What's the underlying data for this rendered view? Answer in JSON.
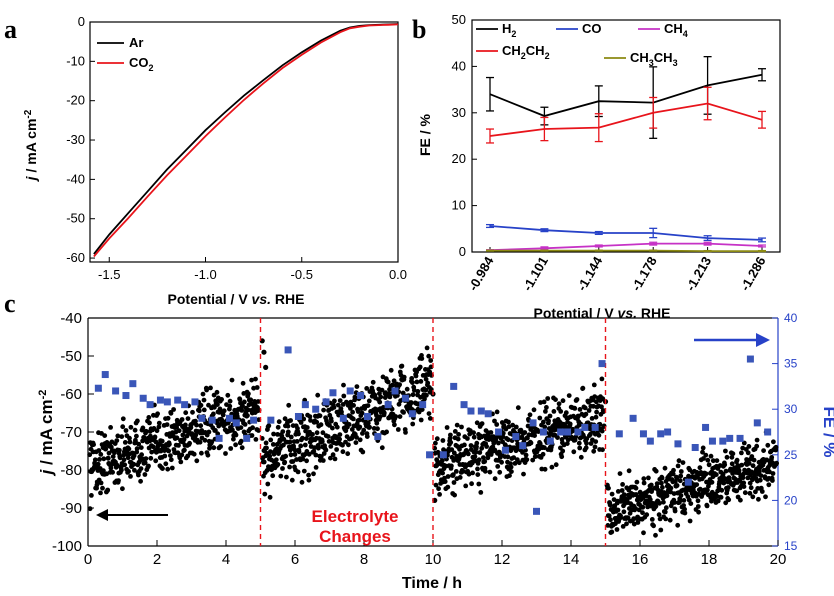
{
  "colors": {
    "black": "#000000",
    "red": "#e8141b",
    "blue": "#2742c8",
    "magenta": "#c632c6",
    "olive": "#8c8a12",
    "fe_points": "#3a56b8"
  },
  "chart_data": [
    {
      "panel": "a",
      "type": "line",
      "xlabel": {
        "pre": "Potential / V ",
        "italic": "vs.",
        "post": " RHE"
      },
      "ylabel": {
        "italic": "j",
        "pre": " / mA cm",
        "sup": "-2"
      },
      "xlim": [
        -1.6,
        0.0
      ],
      "ylim": [
        -61,
        0
      ],
      "xticks": [
        -1.5,
        -1.0,
        -0.5,
        0.0
      ],
      "xtick_labels": [
        "-1.5",
        "-1.0",
        "-0.5",
        "0.0"
      ],
      "yticks": [
        0,
        -10,
        -20,
        -30,
        -40,
        -50,
        -60
      ],
      "ytick_labels": [
        "0",
        "-10",
        "-20",
        "-30",
        "-40",
        "-50",
        "-60"
      ],
      "legend_position": "top-left",
      "series": [
        {
          "name": "Ar",
          "label_main": "Ar",
          "label_sub": "",
          "color": "#000000",
          "x": [
            -1.58,
            -1.5,
            -1.4,
            -1.3,
            -1.2,
            -1.1,
            -1.0,
            -0.9,
            -0.8,
            -0.7,
            -0.6,
            -0.5,
            -0.4,
            -0.3,
            -0.25,
            -0.2,
            -0.15,
            -0.1,
            -0.05,
            0.0
          ],
          "y": [
            -59.0,
            -54.0,
            -48.5,
            -43.0,
            -37.5,
            -32.5,
            -27.5,
            -23.0,
            -18.7,
            -14.8,
            -11.0,
            -7.7,
            -4.7,
            -2.2,
            -1.4,
            -1.0,
            -0.8,
            -0.7,
            -0.6,
            -0.5
          ]
        },
        {
          "name": "CO2",
          "label_main": "CO",
          "label_sub": "2",
          "color": "#e8141b",
          "x": [
            -1.58,
            -1.5,
            -1.4,
            -1.3,
            -1.2,
            -1.1,
            -1.0,
            -0.9,
            -0.8,
            -0.7,
            -0.6,
            -0.5,
            -0.4,
            -0.3,
            -0.25,
            -0.2,
            -0.15,
            -0.1,
            -0.05,
            0.0
          ],
          "y": [
            -59.6,
            -55.0,
            -49.8,
            -44.3,
            -39.0,
            -34.0,
            -29.0,
            -24.3,
            -19.8,
            -15.6,
            -11.7,
            -8.3,
            -5.2,
            -2.6,
            -1.6,
            -1.2,
            -0.9,
            -0.8,
            -0.7,
            -0.6
          ]
        }
      ]
    },
    {
      "panel": "b",
      "type": "line",
      "xlabel": {
        "pre": "Potential / V ",
        "italic": "vs.",
        "post": " RHE"
      },
      "ylabel": {
        "pre": "FE / %"
      },
      "categories": [
        "-0.984",
        "-1.101",
        "-1.144",
        "-1.178",
        "-1.213",
        "-1.286"
      ],
      "ylim": [
        0,
        50
      ],
      "yticks": [
        0,
        10,
        20,
        30,
        40,
        50
      ],
      "ytick_labels": [
        "0",
        "10",
        "20",
        "30",
        "40",
        "50"
      ],
      "legend_position": "top",
      "series": [
        {
          "name": "H2",
          "label_main": "H",
          "label_sub": "2",
          "color": "#000000",
          "values": [
            34.0,
            29.3,
            32.5,
            32.2,
            35.9,
            38.2
          ],
          "errors": [
            3.6,
            1.9,
            3.3,
            7.7,
            6.2,
            1.3
          ]
        },
        {
          "name": "CO",
          "label_main": "CO",
          "label_sub": "",
          "color": "#2742c8",
          "values": [
            5.6,
            4.7,
            4.1,
            4.1,
            3.0,
            2.6
          ],
          "errors": [
            0.3,
            0.3,
            0.3,
            1.0,
            0.5,
            0.4
          ]
        },
        {
          "name": "CH4",
          "label_main": "CH",
          "label_sub": "4",
          "color": "#c632c6",
          "values": [
            0.4,
            0.8,
            1.3,
            1.8,
            1.8,
            1.3
          ],
          "errors": [
            0.1,
            0.3,
            0.2,
            0.3,
            0.3,
            0.2
          ]
        },
        {
          "name": "CH2CH2",
          "label_main": "CH",
          "label_sub": "2",
          "label_main2": "CH",
          "label_sub2": "2",
          "color": "#e8141b",
          "values": [
            25.0,
            26.5,
            26.8,
            30.0,
            32.0,
            28.5
          ],
          "errors": [
            1.5,
            2.5,
            3.0,
            3.3,
            3.5,
            1.8
          ]
        },
        {
          "name": "CH3CH3",
          "label_main": "CH",
          "label_sub": "3",
          "label_main2": "CH",
          "label_sub2": "3",
          "color": "#8c8a12",
          "values": [
            0.3,
            0.3,
            0.3,
            0.3,
            0.2,
            0.2
          ],
          "errors": [
            0.1,
            0.1,
            0.1,
            0.1,
            0.1,
            0.1
          ]
        }
      ]
    },
    {
      "panel": "c",
      "type": "scatter",
      "xlabel": {
        "pre": "Time / h"
      },
      "ylabel": {
        "italic": "j",
        "pre": " / mA cm",
        "sup": "-2"
      },
      "y2label": {
        "pre": "FE / %"
      },
      "xlim": [
        0,
        20
      ],
      "ylim": [
        -100,
        -40
      ],
      "y2lim": [
        15,
        40
      ],
      "xticks": [
        0,
        2,
        4,
        6,
        8,
        10,
        12,
        14,
        16,
        18,
        20
      ],
      "xtick_labels": [
        "0",
        "2",
        "4",
        "6",
        "8",
        "10",
        "12",
        "14",
        "16",
        "18",
        "20"
      ],
      "yticks": [
        -40,
        -50,
        -60,
        -70,
        -80,
        -90,
        -100
      ],
      "ytick_labels": [
        "-40",
        "-50",
        "-60",
        "-70",
        "-80",
        "-90",
        "-100"
      ],
      "y2ticks": [
        15,
        20,
        25,
        30,
        35,
        40
      ],
      "y2tick_labels": [
        "15",
        "20",
        "25",
        "30",
        "35",
        "40"
      ],
      "electrolyte_change_times": [
        5,
        10,
        15
      ],
      "annotation": {
        "line1": "Electrolyte",
        "line2": "Changes"
      },
      "current_segments": [
        {
          "t0": 0.0,
          "t1": 5.0,
          "j0": -79,
          "j1": -64,
          "spread": 8
        },
        {
          "t0": 5.0,
          "t1": 10.0,
          "j0": -77,
          "j1": -58,
          "spread": 9
        },
        {
          "t0": 10.0,
          "t1": 15.0,
          "j0": -79,
          "j1": -66,
          "spread": 8
        },
        {
          "t0": 15.0,
          "t1": 20.0,
          "j0": -91,
          "j1": -78,
          "spread": 7
        }
      ],
      "current_spikes": [
        {
          "t": 5.05,
          "j": -46
        },
        {
          "t": 5.1,
          "j": -49
        },
        {
          "t": 5.15,
          "j": -53
        },
        {
          "t": 10.0,
          "j": -60
        },
        {
          "t": 10.05,
          "j": -88
        },
        {
          "t": 15.0,
          "j": -62
        },
        {
          "t": 15.05,
          "j": -84
        }
      ],
      "fe_points": {
        "t": [
          0.3,
          0.5,
          0.8,
          1.1,
          1.3,
          1.6,
          1.8,
          2.1,
          2.3,
          2.6,
          2.8,
          3.1,
          3.3,
          3.6,
          3.8,
          4.1,
          4.3,
          4.6,
          4.8,
          5.3,
          5.8,
          6.1,
          6.3,
          6.6,
          6.9,
          7.1,
          7.4,
          7.6,
          7.9,
          8.1,
          8.4,
          8.7,
          8.9,
          9.2,
          9.4,
          9.7,
          9.9,
          10.3,
          10.6,
          10.9,
          11.1,
          11.4,
          11.6,
          11.9,
          12.1,
          12.4,
          12.6,
          12.9,
          13.0,
          13.2,
          13.4,
          13.7,
          13.9,
          14.2,
          14.4,
          14.7,
          14.9,
          15.4,
          15.8,
          16.1,
          16.3,
          16.6,
          16.8,
          17.1,
          17.4,
          17.6,
          17.9,
          18.1,
          18.4,
          18.6,
          18.9,
          19.2,
          19.4,
          19.7
        ],
        "fe": [
          32.3,
          33.8,
          32.0,
          31.5,
          32.8,
          31.2,
          30.5,
          31.0,
          30.8,
          31.0,
          30.5,
          30.8,
          29.0,
          28.8,
          26.8,
          29.0,
          28.5,
          26.8,
          28.8,
          28.8,
          36.5,
          29.2,
          30.5,
          30.0,
          30.8,
          31.8,
          29.0,
          32.0,
          31.5,
          29.2,
          27.0,
          30.5,
          32.0,
          31.2,
          29.5,
          30.5,
          25.0,
          25.0,
          32.5,
          30.5,
          29.8,
          29.8,
          29.5,
          27.5,
          25.5,
          27.0,
          26.0,
          28.5,
          18.8,
          27.5,
          26.5,
          27.5,
          27.5,
          27.5,
          28.0,
          28.0,
          35.0,
          27.3,
          29.0,
          27.3,
          26.5,
          27.3,
          27.5,
          26.2,
          22.0,
          25.8,
          28.0,
          26.5,
          26.5,
          26.8,
          26.8,
          35.5,
          28.5,
          27.5
        ]
      }
    }
  ]
}
